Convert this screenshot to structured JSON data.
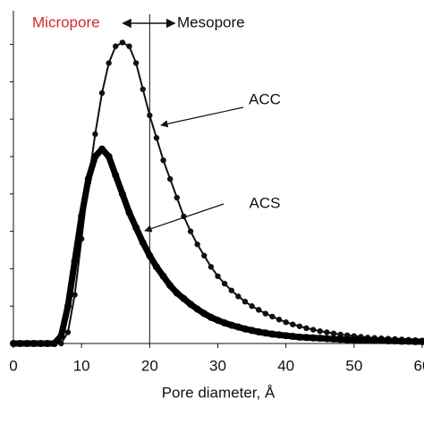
{
  "chart_data": {
    "type": "line",
    "xlabel": "Pore diameter, Å",
    "x": [
      0,
      1,
      2,
      3,
      4,
      5,
      6,
      7,
      8,
      9,
      10,
      11,
      12,
      13,
      14,
      15,
      16,
      17,
      18,
      19,
      20,
      21,
      22,
      23,
      24,
      25,
      26,
      27,
      28,
      29,
      30,
      31,
      32,
      33,
      34,
      35,
      36,
      37,
      38,
      39,
      40,
      41,
      42,
      43,
      44,
      45,
      46,
      47,
      48,
      49,
      50,
      51,
      52,
      53,
      54,
      55,
      56,
      57,
      58,
      59,
      60
    ],
    "series": [
      {
        "name": "ACC",
        "color": "#111111",
        "values": [
          0,
          0,
          0,
          0,
          0,
          0,
          0,
          0,
          0.3,
          1.3,
          2.8,
          4.3,
          5.6,
          6.7,
          7.5,
          7.95,
          8.05,
          7.95,
          7.5,
          6.8,
          6.1,
          5.5,
          4.9,
          4.4,
          3.9,
          3.4,
          3.0,
          2.65,
          2.35,
          2.05,
          1.8,
          1.6,
          1.42,
          1.26,
          1.12,
          1.0,
          0.9,
          0.8,
          0.72,
          0.64,
          0.57,
          0.51,
          0.46,
          0.41,
          0.37,
          0.33,
          0.3,
          0.27,
          0.24,
          0.22,
          0.2,
          0.18,
          0.16,
          0.15,
          0.14,
          0.13,
          0.12,
          0.11,
          0.1,
          0.09,
          0.08
        ]
      },
      {
        "name": "ACS",
        "color": "#000000",
        "values": [
          0,
          0,
          0,
          0,
          0,
          0,
          0,
          0.2,
          1.0,
          2.2,
          3.4,
          4.4,
          5.0,
          5.2,
          5.0,
          4.5,
          4.0,
          3.5,
          3.1,
          2.7,
          2.35,
          2.05,
          1.8,
          1.55,
          1.35,
          1.2,
          1.05,
          0.92,
          0.8,
          0.7,
          0.62,
          0.55,
          0.49,
          0.44,
          0.39,
          0.35,
          0.31,
          0.28,
          0.25,
          0.23,
          0.21,
          0.19,
          0.17,
          0.16,
          0.15,
          0.14,
          0.13,
          0.12,
          0.11,
          0.1,
          0.1,
          0.09,
          0.09,
          0.08,
          0.08,
          0.07,
          0.07,
          0.06,
          0.06,
          0.05,
          0.05
        ]
      }
    ],
    "xlim": [
      0,
      60
    ],
    "xticks": [
      0,
      10,
      20,
      30,
      40,
      50,
      60
    ],
    "ylim": [
      0,
      8.9
    ],
    "yticks": [
      0,
      1,
      2,
      3,
      4,
      5,
      6,
      7,
      8
    ],
    "divider_x": 20,
    "annotations": [
      {
        "text": "Micropore",
        "color": "#d42a2a"
      },
      {
        "text": "Mesopore",
        "color": "#111111"
      },
      {
        "text": "ACC",
        "color": "#111111"
      },
      {
        "text": "ACS",
        "color": "#111111"
      }
    ]
  }
}
